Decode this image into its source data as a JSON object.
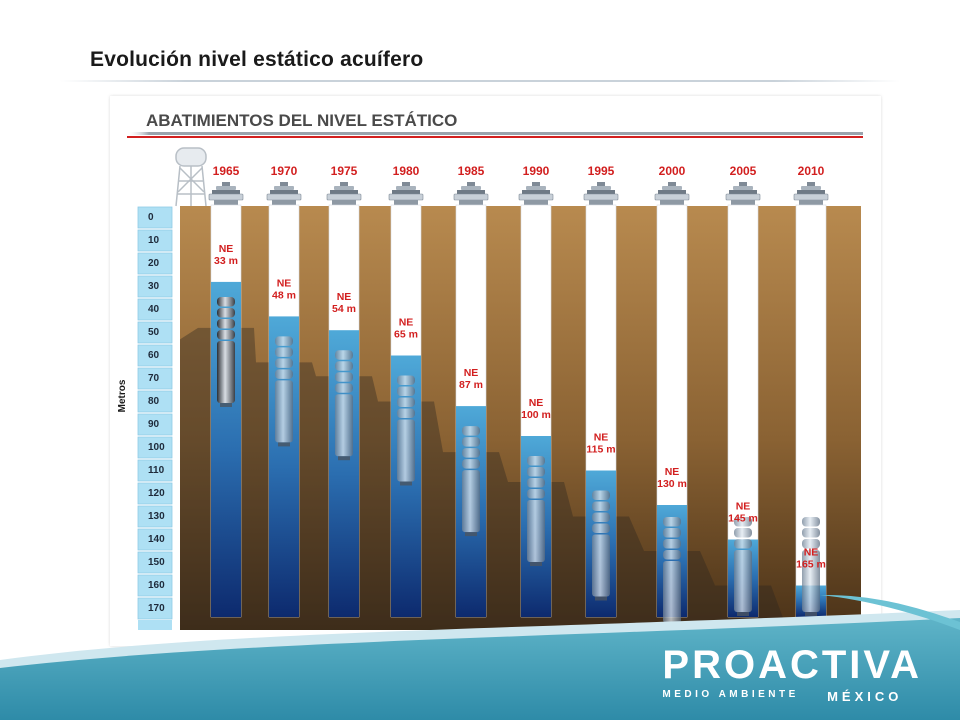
{
  "slide": {
    "title": "Evolución nivel estático acuífero"
  },
  "diagram": {
    "heading": "ABATIMIENTOS DEL NIVEL ESTÁTICO",
    "axis_label": "Metros",
    "depth_ticks": [
      0,
      10,
      20,
      30,
      40,
      50,
      60,
      70,
      80,
      90,
      100,
      110,
      120,
      130,
      140,
      150,
      160,
      170
    ],
    "wells": [
      {
        "year": "1965",
        "level": 33,
        "ne_label": "NE",
        "depth_label": "33 m"
      },
      {
        "year": "1970",
        "level": 48,
        "ne_label": "NE",
        "depth_label": "48 m"
      },
      {
        "year": "1975",
        "level": 54,
        "ne_label": "NE",
        "depth_label": "54 m"
      },
      {
        "year": "1980",
        "level": 65,
        "ne_label": "NE",
        "depth_label": "65 m"
      },
      {
        "year": "1985",
        "level": 87,
        "ne_label": "NE",
        "depth_label": "87 m"
      },
      {
        "year": "1990",
        "level": 100,
        "ne_label": "NE",
        "depth_label": "100 m"
      },
      {
        "year": "1995",
        "level": 115,
        "ne_label": "NE",
        "depth_label": "115 m"
      },
      {
        "year": "2000",
        "level": 130,
        "ne_label": "NE",
        "depth_label": "130 m"
      },
      {
        "year": "2005",
        "level": 145,
        "ne_label": "NE",
        "depth_label": "145 m"
      },
      {
        "year": "2010",
        "level": 165,
        "ne_label": "NE",
        "depth_label": "165 m"
      }
    ],
    "colors": {
      "soil_top": "#b88a4f",
      "soil_bottom": "#4a3218",
      "water_top": "#4fa9d8",
      "water_bottom": "#0d2a6e",
      "label_red": "#d21f1f",
      "heading_rule": "#d21f1f",
      "scale_box": "#aee0f4"
    }
  },
  "brand": {
    "name": "PROACTIVA",
    "tagline": "MEDIO AMBIENTE",
    "country": "MÉXICO"
  }
}
